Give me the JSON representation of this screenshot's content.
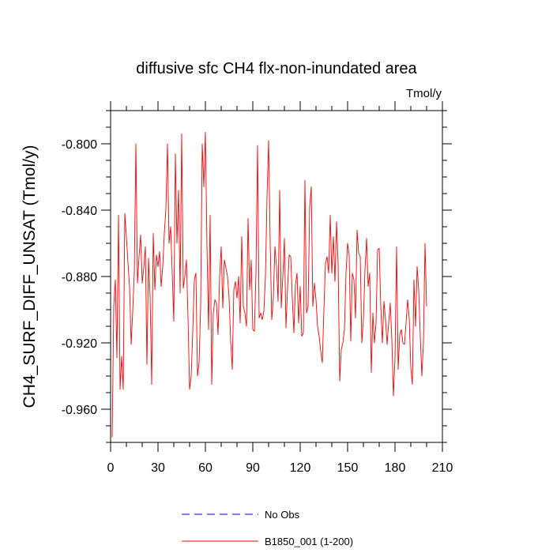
{
  "chart_data": {
    "type": "line",
    "title": "diffusive sfc CH4 flx-non-inundated area",
    "units_label": "Tmol/y",
    "ylabel": "CH4_SURF_DIFF_UNSAT  (Tmol/y)",
    "xlim": [
      0,
      210
    ],
    "ylim": [
      -0.98,
      -0.78
    ],
    "x_ticks": [
      0,
      30,
      60,
      90,
      120,
      150,
      180,
      210
    ],
    "x_tick_labels": [
      "0",
      "30",
      "60",
      "90",
      "120",
      "150",
      "180",
      "210"
    ],
    "y_ticks": [
      -0.96,
      -0.92,
      -0.88,
      -0.84,
      -0.8
    ],
    "y_tick_labels": [
      "-0.960",
      "-0.920",
      "-0.880",
      "-0.840",
      "-0.800"
    ],
    "legend_position": "bottom",
    "series": [
      {
        "name": "No Obs",
        "color": "#0000ff",
        "dash": "dashed",
        "values": []
      },
      {
        "name": "B1850_001 (1-200)",
        "color": "#ff0000",
        "dash": "solid",
        "x_start": 1,
        "values": [
          -0.977,
          -0.898,
          -0.882,
          -0.929,
          -0.843,
          -0.948,
          -0.928,
          -0.948,
          -0.842,
          -0.856,
          -0.872,
          -0.886,
          -0.921,
          -0.901,
          -0.878,
          -0.8,
          -0.884,
          -0.868,
          -0.855,
          -0.884,
          -0.875,
          -0.862,
          -0.933,
          -0.869,
          -0.892,
          -0.945,
          -0.854,
          -0.888,
          -0.867,
          -0.874,
          -0.865,
          -0.886,
          -0.874,
          -0.854,
          -0.839,
          -0.8,
          -0.86,
          -0.85,
          -0.878,
          -0.907,
          -0.806,
          -0.86,
          -0.828,
          -0.89,
          -0.794,
          -0.887,
          -0.88,
          -0.87,
          -0.905,
          -0.948,
          -0.94,
          -0.913,
          -0.882,
          -0.878,
          -0.94,
          -0.932,
          -0.898,
          -0.8,
          -0.826,
          -0.793,
          -0.862,
          -0.912,
          -0.843,
          -0.945,
          -0.902,
          -0.894,
          -0.896,
          -0.915,
          -0.88,
          -0.862,
          -0.899,
          -0.87,
          -0.875,
          -0.88,
          -0.893,
          -0.919,
          -0.936,
          -0.888,
          -0.883,
          -0.893,
          -0.88,
          -0.908,
          -0.856,
          -0.898,
          -0.902,
          -0.91,
          -0.845,
          -0.888,
          -0.87,
          -0.912,
          -0.913,
          -0.878,
          -0.801,
          -0.905,
          -0.902,
          -0.906,
          -0.901,
          -0.88,
          -0.832,
          -0.798,
          -0.86,
          -0.906,
          -0.893,
          -0.862,
          -0.874,
          -0.895,
          -0.828,
          -0.899,
          -0.88,
          -0.857,
          -0.911,
          -0.887,
          -0.867,
          -0.868,
          -0.893,
          -0.914,
          -0.885,
          -0.878,
          -0.908,
          -0.886,
          -0.916,
          -0.914,
          -0.822,
          -0.902,
          -0.898,
          -0.838,
          -0.826,
          -0.898,
          -0.884,
          -0.894,
          -0.91,
          -0.916,
          -0.925,
          -0.932,
          -0.9,
          -0.872,
          -0.868,
          -0.878,
          -0.843,
          -0.878,
          -0.856,
          -0.883,
          -0.847,
          -0.872,
          -0.943,
          -0.924,
          -0.92,
          -0.912,
          -0.878,
          -0.86,
          -0.867,
          -0.919,
          -0.878,
          -0.882,
          -0.905,
          -0.852,
          -0.866,
          -0.868,
          -0.92,
          -0.906,
          -0.876,
          -0.857,
          -0.886,
          -0.878,
          -0.938,
          -0.902,
          -0.92,
          -0.908,
          -0.864,
          -0.863,
          -0.898,
          -0.92,
          -0.895,
          -0.906,
          -0.921,
          -0.908,
          -0.896,
          -0.918,
          -0.952,
          -0.929,
          -0.862,
          -0.936,
          -0.915,
          -0.912,
          -0.92,
          -0.921,
          -0.908,
          -0.894,
          -0.905,
          -0.935,
          -0.945,
          -0.882,
          -0.91,
          -0.874,
          -0.888,
          -0.916,
          -0.94,
          -0.92,
          -0.86,
          -0.898
        ]
      }
    ]
  }
}
